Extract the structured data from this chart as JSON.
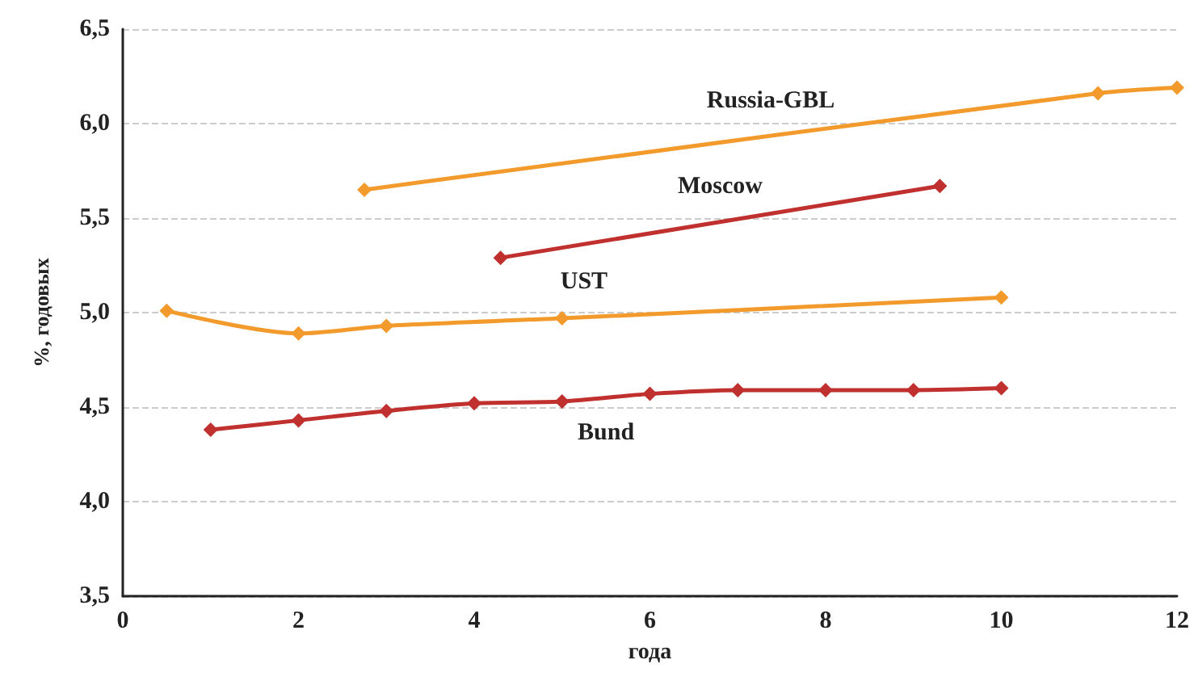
{
  "chart_data": {
    "type": "line",
    "xlabel": "года",
    "ylabel": "%, годовых",
    "xlim": [
      0,
      12
    ],
    "xticks": [
      0,
      2,
      4,
      6,
      8,
      10,
      12
    ],
    "ylim": [
      3.5,
      6.5
    ],
    "yticks": [
      {
        "value": 3.5,
        "label": "3,5"
      },
      {
        "value": 4,
        "label": "4,0"
      },
      {
        "value": 4.5,
        "label": "4,5"
      },
      {
        "value": 5,
        "label": "5,0"
      },
      {
        "value": 5.5,
        "label": "5,5"
      },
      {
        "value": 6,
        "label": "6,0"
      },
      {
        "value": 6.5,
        "label": "6,5"
      }
    ],
    "grid": "y",
    "legend": false,
    "marker": "diamond",
    "line_style": "solid",
    "series": [
      {
        "name": "Russia-GBL",
        "color": "#f39a2c",
        "x": [
          2.75,
          11.1,
          12
        ],
        "values": [
          5.65,
          6.16,
          6.19
        ]
      },
      {
        "name": "Moscow",
        "color": "#c0302e",
        "x": [
          4.3,
          9.3
        ],
        "values": [
          5.29,
          5.67
        ]
      },
      {
        "name": "UST",
        "color": "#f39a2c",
        "x": [
          0.5,
          2,
          3,
          5,
          10
        ],
        "values": [
          5.01,
          4.89,
          4.93,
          4.97,
          5.08
        ]
      },
      {
        "name": "Bund",
        "color": "#c0302e",
        "x": [
          1,
          2,
          3,
          4,
          5,
          6,
          7,
          8,
          9,
          10
        ],
        "values": [
          4.38,
          4.43,
          4.48,
          4.52,
          4.53,
          4.57,
          4.59,
          4.59,
          4.59,
          4.6
        ]
      }
    ]
  }
}
